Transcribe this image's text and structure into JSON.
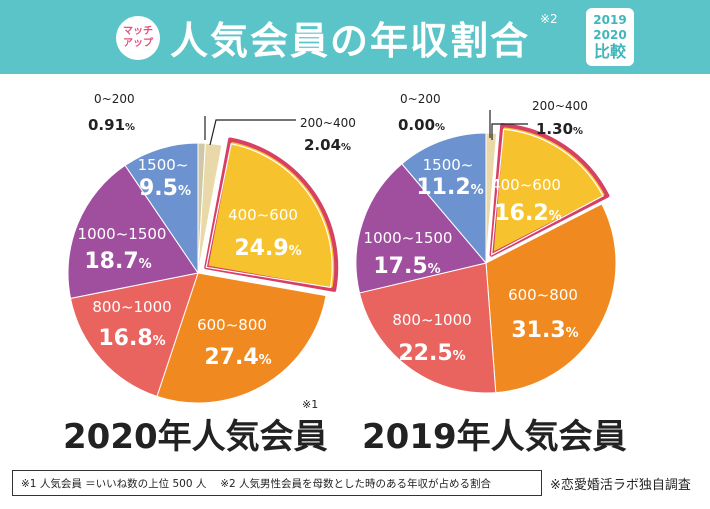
{
  "header": {
    "badge_line1": "マッチ",
    "badge_line2": "アップ",
    "title": "人気会員の年収割合",
    "title_note": "※2",
    "compare_year1": "2019",
    "compare_year2": "2020",
    "compare_label": "比較"
  },
  "chart_data": [
    {
      "type": "pie",
      "title": "2020年人気会員",
      "title_note": "※1",
      "unit": "%",
      "highlight": "400~600",
      "slices": [
        {
          "label": "0~200",
          "value": 0.91,
          "display": "0.91",
          "color": "#cfc7a6"
        },
        {
          "label": "200~400",
          "value": 2.04,
          "display": "2.04",
          "color": "#e9d9a8"
        },
        {
          "label": "400~600",
          "value": 24.9,
          "display": "24.9",
          "color": "#f6c32e"
        },
        {
          "label": "600~800",
          "value": 27.4,
          "display": "27.4",
          "color": "#f0891f"
        },
        {
          "label": "800~1000",
          "value": 16.8,
          "display": "16.8",
          "color": "#e9645f"
        },
        {
          "label": "1000~1500",
          "value": 18.7,
          "display": "18.7",
          "color": "#a04f9f"
        },
        {
          "label": "1500~",
          "value": 9.5,
          "display": "9.5",
          "color": "#6c92cf"
        }
      ]
    },
    {
      "type": "pie",
      "title": "2019年人気会員",
      "unit": "%",
      "highlight": "400~600",
      "slices": [
        {
          "label": "0~200",
          "value": 0.0,
          "display": "0.00",
          "color": "#cfc7a6"
        },
        {
          "label": "200~400",
          "value": 1.3,
          "display": "1.30",
          "color": "#e9d9a8"
        },
        {
          "label": "400~600",
          "value": 16.2,
          "display": "16.2",
          "color": "#f6c32e"
        },
        {
          "label": "600~800",
          "value": 31.3,
          "display": "31.3",
          "color": "#f0891f"
        },
        {
          "label": "800~1000",
          "value": 22.5,
          "display": "22.5",
          "color": "#e9645f"
        },
        {
          "label": "1000~1500",
          "value": 17.5,
          "display": "17.5",
          "color": "#a04f9f"
        },
        {
          "label": "1500~",
          "value": 11.2,
          "display": "11.2",
          "color": "#6c92cf"
        }
      ]
    }
  ],
  "footer": {
    "note": "※1  人気会員 ＝いいね数の上位 500 人　 ※2  人気男性会員を母数とした時のある年収が占める割合",
    "source": "※恋愛婚活ラボ独自調査"
  }
}
